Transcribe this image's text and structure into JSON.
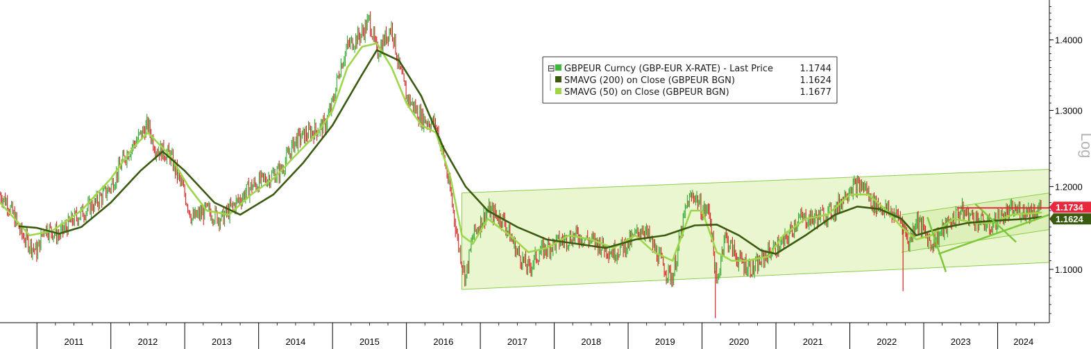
{
  "chart_data": {
    "type": "line",
    "scale": "log",
    "ylim": [
      1.04,
      1.46
    ],
    "y_ticks": [
      {
        "value": 1.1,
        "label": "1.1000"
      },
      {
        "value": 1.2,
        "label": "1.2000"
      },
      {
        "value": 1.3,
        "label": "1.3000"
      },
      {
        "value": 1.4,
        "label": "1.4000"
      }
    ],
    "y_axis_title": "Log",
    "x_range": [
      2010.5,
      2024.7
    ],
    "years": [
      "2011",
      "2012",
      "2013",
      "2014",
      "2015",
      "2016",
      "2017",
      "2018",
      "2019",
      "2020",
      "2021",
      "2022",
      "2023",
      "2024"
    ],
    "legend": {
      "position": "top-center",
      "entries": [
        {
          "label": "GBPEUR Curncy (GBP-EUR X-RATE) - Last Price",
          "value": "1.1744",
          "color": "#3cb83c"
        },
        {
          "label": "SMAVG (200)  on Close (GBPEUR BGN)",
          "value": "1.1624",
          "color": "#3a5a10"
        },
        {
          "label": "SMAVG (50)  on Close (GBPEUR BGN)",
          "value": "1.1677",
          "color": "#9ed64a"
        }
      ]
    },
    "price_anchors": [
      [
        2010.5,
        1.19
      ],
      [
        2010.6,
        1.18
      ],
      [
        2010.8,
        1.14
      ],
      [
        2011.0,
        1.12
      ],
      [
        2011.1,
        1.15
      ],
      [
        2011.3,
        1.14
      ],
      [
        2011.5,
        1.16
      ],
      [
        2011.8,
        1.18
      ],
      [
        2012.0,
        1.2
      ],
      [
        2012.2,
        1.24
      ],
      [
        2012.35,
        1.26
      ],
      [
        2012.5,
        1.28
      ],
      [
        2012.6,
        1.25
      ],
      [
        2012.8,
        1.24
      ],
      [
        2013.0,
        1.19
      ],
      [
        2013.1,
        1.16
      ],
      [
        2013.3,
        1.17
      ],
      [
        2013.5,
        1.16
      ],
      [
        2013.7,
        1.18
      ],
      [
        2013.9,
        1.2
      ],
      [
        2014.1,
        1.21
      ],
      [
        2014.3,
        1.22
      ],
      [
        2014.5,
        1.26
      ],
      [
        2014.7,
        1.27
      ],
      [
        2014.9,
        1.28
      ],
      [
        2015.0,
        1.31
      ],
      [
        2015.1,
        1.36
      ],
      [
        2015.2,
        1.39
      ],
      [
        2015.4,
        1.41
      ],
      [
        2015.5,
        1.43
      ],
      [
        2015.6,
        1.38
      ],
      [
        2015.8,
        1.42
      ],
      [
        2015.9,
        1.36
      ],
      [
        2016.0,
        1.32
      ],
      [
        2016.2,
        1.29
      ],
      [
        2016.4,
        1.28
      ],
      [
        2016.5,
        1.24
      ],
      [
        2016.6,
        1.19
      ],
      [
        2016.7,
        1.13
      ],
      [
        2016.8,
        1.09
      ],
      [
        2016.9,
        1.14
      ],
      [
        2017.1,
        1.17
      ],
      [
        2017.3,
        1.16
      ],
      [
        2017.5,
        1.12
      ],
      [
        2017.65,
        1.1
      ],
      [
        2017.8,
        1.12
      ],
      [
        2018.0,
        1.13
      ],
      [
        2018.3,
        1.14
      ],
      [
        2018.6,
        1.13
      ],
      [
        2018.8,
        1.12
      ],
      [
        2019.0,
        1.13
      ],
      [
        2019.2,
        1.15
      ],
      [
        2019.5,
        1.1
      ],
      [
        2019.6,
        1.09
      ],
      [
        2019.8,
        1.18
      ],
      [
        2019.9,
        1.19
      ],
      [
        2020.0,
        1.17
      ],
      [
        2020.1,
        1.17
      ],
      [
        2020.2,
        1.08
      ],
      [
        2020.3,
        1.14
      ],
      [
        2020.5,
        1.11
      ],
      [
        2020.7,
        1.1
      ],
      [
        2020.9,
        1.12
      ],
      [
        2021.1,
        1.13
      ],
      [
        2021.3,
        1.16
      ],
      [
        2021.5,
        1.16
      ],
      [
        2021.8,
        1.17
      ],
      [
        2022.0,
        1.2
      ],
      [
        2022.2,
        1.2
      ],
      [
        2022.3,
        1.18
      ],
      [
        2022.5,
        1.17
      ],
      [
        2022.7,
        1.16
      ],
      [
        2022.8,
        1.13
      ],
      [
        2022.9,
        1.16
      ],
      [
        2023.1,
        1.13
      ],
      [
        2023.3,
        1.15
      ],
      [
        2023.5,
        1.17
      ],
      [
        2023.7,
        1.16
      ],
      [
        2023.9,
        1.15
      ],
      [
        2024.0,
        1.16
      ],
      [
        2024.2,
        1.17
      ],
      [
        2024.5,
        1.17
      ],
      [
        2024.6,
        1.1744
      ]
    ],
    "sma200": [
      [
        2010.75,
        1.151
      ],
      [
        2011.0,
        1.149
      ],
      [
        2011.3,
        1.142
      ],
      [
        2011.6,
        1.15
      ],
      [
        2012.0,
        1.18
      ],
      [
        2012.4,
        1.22
      ],
      [
        2012.7,
        1.245
      ],
      [
        2013.0,
        1.22
      ],
      [
        2013.4,
        1.18
      ],
      [
        2013.75,
        1.165
      ],
      [
        2014.2,
        1.19
      ],
      [
        2014.6,
        1.23
      ],
      [
        2015.0,
        1.28
      ],
      [
        2015.4,
        1.35
      ],
      [
        2015.6,
        1.385
      ],
      [
        2015.9,
        1.37
      ],
      [
        2016.2,
        1.32
      ],
      [
        2016.5,
        1.25
      ],
      [
        2016.8,
        1.2
      ],
      [
        2017.1,
        1.17
      ],
      [
        2017.5,
        1.15
      ],
      [
        2017.9,
        1.135
      ],
      [
        2018.3,
        1.13
      ],
      [
        2018.7,
        1.125
      ],
      [
        2019.1,
        1.135
      ],
      [
        2019.5,
        1.14
      ],
      [
        2019.9,
        1.152
      ],
      [
        2020.2,
        1.153
      ],
      [
        2020.5,
        1.14
      ],
      [
        2020.8,
        1.122
      ],
      [
        2021.0,
        1.118
      ],
      [
        2021.4,
        1.14
      ],
      [
        2021.8,
        1.165
      ],
      [
        2022.1,
        1.175
      ],
      [
        2022.4,
        1.172
      ],
      [
        2022.7,
        1.16
      ],
      [
        2022.9,
        1.14
      ],
      [
        2023.2,
        1.148
      ],
      [
        2023.6,
        1.155
      ],
      [
        2024.0,
        1.158
      ],
      [
        2024.4,
        1.16
      ],
      [
        2024.6,
        1.1624
      ]
    ],
    "sma50": [
      [
        2010.5,
        1.18
      ],
      [
        2010.9,
        1.14
      ],
      [
        2011.2,
        1.145
      ],
      [
        2011.6,
        1.17
      ],
      [
        2012.0,
        1.21
      ],
      [
        2012.3,
        1.25
      ],
      [
        2012.5,
        1.27
      ],
      [
        2012.8,
        1.24
      ],
      [
        2013.05,
        1.2
      ],
      [
        2013.3,
        1.17
      ],
      [
        2013.6,
        1.165
      ],
      [
        2013.9,
        1.19
      ],
      [
        2014.2,
        1.21
      ],
      [
        2014.5,
        1.24
      ],
      [
        2014.8,
        1.27
      ],
      [
        2015.0,
        1.3
      ],
      [
        2015.2,
        1.36
      ],
      [
        2015.4,
        1.39
      ],
      [
        2015.6,
        1.395
      ],
      [
        2015.8,
        1.36
      ],
      [
        2016.0,
        1.31
      ],
      [
        2016.2,
        1.28
      ],
      [
        2016.4,
        1.27
      ],
      [
        2016.6,
        1.21
      ],
      [
        2016.75,
        1.14
      ],
      [
        2016.9,
        1.13
      ],
      [
        2017.1,
        1.16
      ],
      [
        2017.4,
        1.14
      ],
      [
        2017.65,
        1.12
      ],
      [
        2017.9,
        1.125
      ],
      [
        2018.2,
        1.14
      ],
      [
        2018.5,
        1.135
      ],
      [
        2018.8,
        1.125
      ],
      [
        2019.1,
        1.14
      ],
      [
        2019.35,
        1.12
      ],
      [
        2019.6,
        1.11
      ],
      [
        2019.85,
        1.17
      ],
      [
        2020.0,
        1.17
      ],
      [
        2020.2,
        1.12
      ],
      [
        2020.4,
        1.11
      ],
      [
        2020.6,
        1.11
      ],
      [
        2020.9,
        1.115
      ],
      [
        2021.1,
        1.14
      ],
      [
        2021.4,
        1.16
      ],
      [
        2021.7,
        1.165
      ],
      [
        2022.0,
        1.19
      ],
      [
        2022.25,
        1.19
      ],
      [
        2022.5,
        1.17
      ],
      [
        2022.7,
        1.15
      ],
      [
        2022.9,
        1.135
      ],
      [
        2023.1,
        1.14
      ],
      [
        2023.4,
        1.16
      ],
      [
        2023.7,
        1.155
      ],
      [
        2023.9,
        1.155
      ],
      [
        2024.2,
        1.165
      ],
      [
        2024.6,
        1.1677
      ]
    ],
    "regression_channel": {
      "start": 2016.75,
      "end": 2024.7,
      "upper": [
        1.192,
        1.222
      ],
      "lower": [
        1.077,
        1.108
      ]
    },
    "inner_channel": {
      "start": 2022.7,
      "end": 2024.7,
      "upper": [
        1.165,
        1.192
      ],
      "lower": [
        1.12,
        1.147
      ]
    },
    "trend_lines": [
      {
        "from": [
          2023.2,
          1.118
        ],
        "to": [
          2024.7,
          1.165
        ]
      },
      {
        "from": [
          2023.7,
          1.178
        ],
        "to": [
          2024.25,
          1.132
        ]
      },
      {
        "from": [
          2023.05,
          1.162
        ],
        "to": [
          2023.3,
          1.097
        ]
      }
    ],
    "resistance_line": {
      "from": 2023.45,
      "to": 2024.7,
      "value": 1.1734
    },
    "badges": [
      {
        "label": "1.1734",
        "value": 1.1734,
        "bg": "#e8283c",
        "fg": "#ffffff"
      },
      {
        "label": "1.1624",
        "value": 1.1624,
        "bg": "#3a5a10",
        "fg": "#ffffff"
      }
    ],
    "colors": {
      "up": "#2fa82f",
      "down": "#d42020",
      "sma200": "#3a5a10",
      "sma50": "#9ed64a",
      "channel_fill": "#e6f5c8",
      "channel_line": "#8ccc4a",
      "trend": "#7cc83a",
      "resistance": "#e8283c"
    }
  }
}
